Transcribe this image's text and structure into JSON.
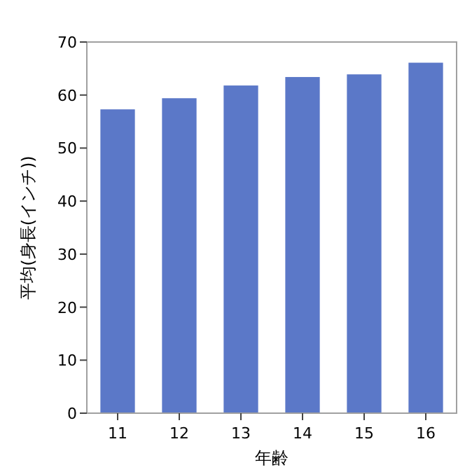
{
  "chart_data": {
    "type": "bar",
    "xlabel": "年齢",
    "ylabel": "平均(身長(インチ))",
    "categories": [
      "11",
      "12",
      "13",
      "14",
      "15",
      "16"
    ],
    "values": [
      57.3,
      59.4,
      61.8,
      63.4,
      63.9,
      66.1
    ],
    "color": "#5b78c8",
    "ylim": [
      0,
      70
    ],
    "yticks": [
      0,
      10,
      20,
      30,
      40,
      50,
      60,
      70
    ],
    "grid": false
  }
}
